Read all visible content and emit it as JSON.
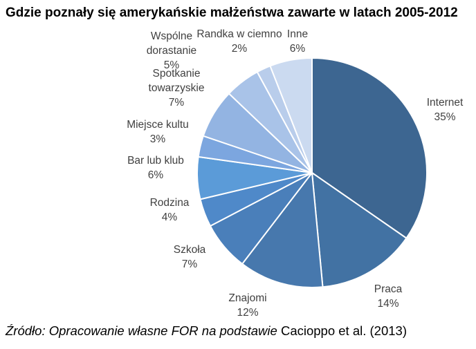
{
  "chart_data": {
    "type": "pie",
    "title": "Gdzie poznały się amerykańskie małżeństwa zawarte w latach 2005-2012",
    "slices": [
      {
        "label": "Internet",
        "value": 35,
        "value_label": "35%",
        "color": "#3d6691"
      },
      {
        "label": "Praca",
        "value": 14,
        "value_label": "14%",
        "color": "#4272a3"
      },
      {
        "label": "Znajomi",
        "value": 12,
        "value_label": "12%",
        "color": "#4778ad"
      },
      {
        "label": "Szkoła",
        "value": 7,
        "value_label": "7%",
        "color": "#4a7fba"
      },
      {
        "label": "Rodzina",
        "value": 4,
        "value_label": "4%",
        "color": "#4f89c9"
      },
      {
        "label": "Bar lub klub",
        "value": 6,
        "value_label": "6%",
        "color": "#5b9bd8"
      },
      {
        "label": "Miejsce kultu",
        "value": 3,
        "value_label": "3%",
        "color": "#7ca6df"
      },
      {
        "label": "Spotkanie towarzyskie",
        "value": 7,
        "value_label": "7%",
        "color": "#93b4e2"
      },
      {
        "label": "Wspólne dorastanie",
        "value": 5,
        "value_label": "5%",
        "color": "#a9c3e8"
      },
      {
        "label": "Randka w ciemno",
        "value": 2,
        "value_label": "2%",
        "color": "#b9cdeb"
      },
      {
        "label": "Inne",
        "value": 6,
        "value_label": "6%",
        "color": "#cbdaf0"
      }
    ]
  },
  "source": {
    "italic": "Źródło: Opracowanie własne FOR na podstawie",
    "plain": " Cacioppo et al. (2013)"
  }
}
